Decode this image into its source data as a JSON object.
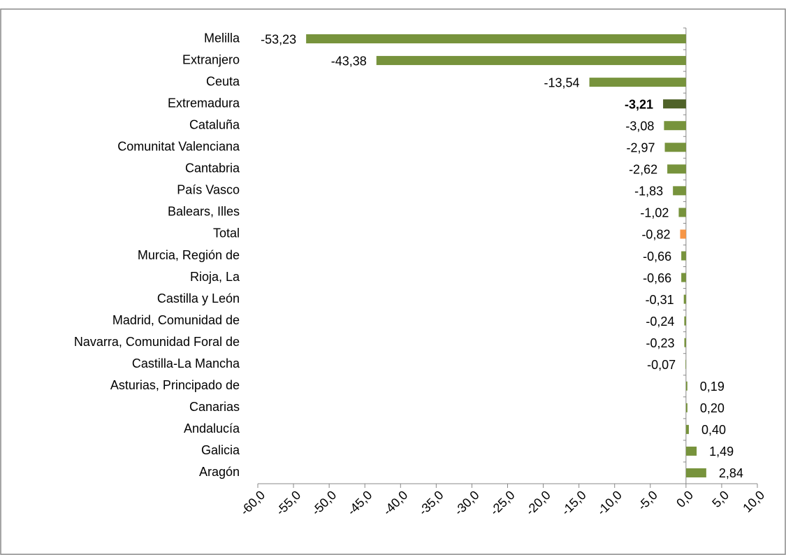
{
  "chart_data": {
    "type": "bar",
    "orientation": "horizontal",
    "categories": [
      "Melilla",
      "Extranjero",
      "Ceuta",
      "Extremadura",
      "Cataluña",
      "Comunitat Valenciana",
      "Cantabria",
      "País Vasco",
      "Balears, Illes",
      "Total",
      "Murcia, Región de",
      "Rioja, La",
      "Castilla y León",
      "Madrid, Comunidad de",
      "Navarra, Comunidad  Foral de",
      "Castilla-La Mancha",
      "Asturias, Principado de",
      "Canarias",
      "Andalucía",
      "Galicia",
      "Aragón"
    ],
    "values": [
      -53.23,
      -43.38,
      -13.54,
      -3.21,
      -3.08,
      -2.97,
      -2.62,
      -1.83,
      -1.02,
      -0.82,
      -0.66,
      -0.66,
      -0.31,
      -0.24,
      -0.23,
      -0.07,
      0.19,
      0.2,
      0.4,
      1.49,
      2.84
    ],
    "value_labels": [
      "-53,23",
      "-43,38",
      "-13,54",
      "-3,21",
      "-3,08",
      "-2,97",
      "-2,62",
      "-1,83",
      "-1,02",
      "-0,82",
      "-0,66",
      "-0,66",
      "-0,31",
      "-0,24",
      "-0,23",
      "-0,07",
      "0,19",
      "0,20",
      "0,40",
      "1,49",
      "2,84"
    ],
    "colors": [
      "#77933c",
      "#77933c",
      "#77933c",
      "#4f6228",
      "#77933c",
      "#77933c",
      "#77933c",
      "#77933c",
      "#77933c",
      "#f79646",
      "#77933c",
      "#77933c",
      "#77933c",
      "#77933c",
      "#77933c",
      "#77933c",
      "#77933c",
      "#77933c",
      "#77933c",
      "#77933c",
      "#77933c"
    ],
    "highlight": "Extremadura",
    "xlim": [
      -60,
      10
    ],
    "xticks": [
      {
        "value": -60,
        "label": "-60,0"
      },
      {
        "value": -55,
        "label": "-55,0"
      },
      {
        "value": -50,
        "label": "-50,0"
      },
      {
        "value": -45,
        "label": "-45,0"
      },
      {
        "value": -40,
        "label": "-40,0"
      },
      {
        "value": -35,
        "label": "-35,0"
      },
      {
        "value": -30,
        "label": "-30,0"
      },
      {
        "value": -25,
        "label": "-25,0"
      },
      {
        "value": -20,
        "label": "-20,0"
      },
      {
        "value": -15,
        "label": "-15,0"
      },
      {
        "value": -10,
        "label": "-10,0"
      },
      {
        "value": -5,
        "label": "-5,0"
      },
      {
        "value": 0,
        "label": "0,0"
      },
      {
        "value": 5,
        "label": "5,0"
      },
      {
        "value": 10,
        "label": "10,0"
      }
    ]
  }
}
